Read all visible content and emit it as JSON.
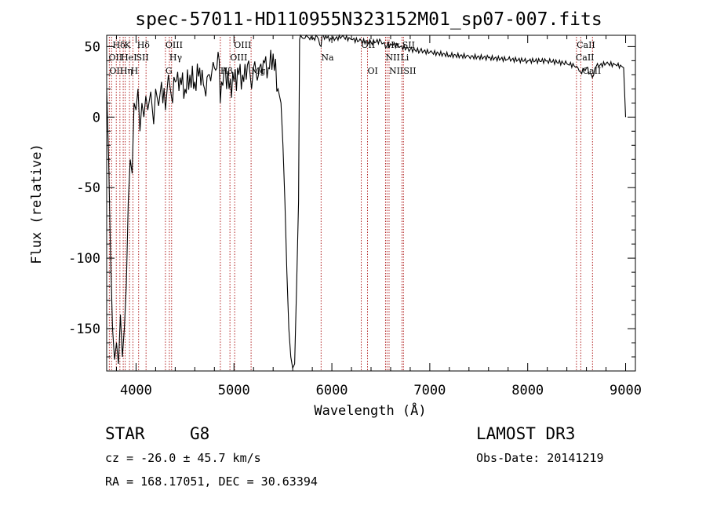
{
  "chart_data": {
    "type": "line",
    "title": "spec-57011-HD110955N323152M01_sp07-007.fits",
    "xlabel": "Wavelength (Å)",
    "ylabel": "Flux (relative)",
    "xlim": [
      3700,
      9100
    ],
    "ylim": [
      -180,
      58
    ],
    "xticks": [
      4000,
      5000,
      6000,
      7000,
      8000,
      9000
    ],
    "yticks": [
      50,
      0,
      -50,
      -100,
      -150
    ],
    "series": [
      {
        "name": "flux",
        "x": [
          3700,
          3720,
          3740,
          3760,
          3780,
          3800,
          3820,
          3840,
          3860,
          3880,
          3900,
          3920,
          3940,
          3960,
          3980,
          4000,
          4020,
          4040,
          4060,
          4080,
          4100,
          4120,
          4150,
          4180,
          4200,
          4230,
          4260,
          4300,
          4330,
          4360,
          4400,
          4450,
          4500,
          4550,
          4600,
          4650,
          4700,
          4750,
          4800,
          4850,
          4860,
          4900,
          4950,
          5000,
          5050,
          5100,
          5150,
          5180,
          5200,
          5250,
          5300,
          5350,
          5400,
          5450,
          5480,
          5500,
          5520,
          5540,
          5560,
          5580,
          5600,
          5620,
          5640,
          5660,
          5670,
          5680,
          5700,
          5750,
          5800,
          5850,
          5890,
          5900,
          5950,
          6000,
          6100,
          6200,
          6300,
          6400,
          6500,
          6560,
          6600,
          6700,
          6800,
          6900,
          7000,
          7200,
          7400,
          7600,
          7800,
          8000,
          8200,
          8400,
          8500,
          8540,
          8600,
          8660,
          8700,
          8800,
          8900,
          8960,
          8980,
          9000
        ],
        "y": [
          20,
          -30,
          -100,
          -150,
          -172,
          -160,
          -175,
          -140,
          -170,
          -150,
          -120,
          -60,
          -30,
          -40,
          10,
          5,
          20,
          -10,
          10,
          0,
          15,
          5,
          18,
          -5,
          20,
          8,
          25,
          5,
          30,
          15,
          25,
          28,
          20,
          30,
          25,
          35,
          20,
          30,
          35,
          40,
          10,
          35,
          20,
          25,
          30,
          25,
          40,
          20,
          35,
          30,
          40,
          35,
          45,
          20,
          10,
          -20,
          -60,
          -110,
          -150,
          -170,
          -178,
          -175,
          -120,
          -60,
          55,
          58,
          56,
          57,
          55,
          57,
          50,
          58,
          56,
          55,
          57,
          55,
          54,
          53,
          54,
          50,
          52,
          50,
          48,
          47,
          46,
          44,
          43,
          42,
          41,
          40,
          40,
          38,
          36,
          32,
          35,
          28,
          36,
          38,
          37,
          36,
          35,
          0
        ]
      }
    ],
    "line_markers": [
      {
        "label": "Hδ",
        "x": 3760,
        "row": 0
      },
      {
        "label": "K",
        "x": 3880,
        "row": 0
      },
      {
        "label": "Hδ",
        "x": 4010,
        "row": 0
      },
      {
        "label": "OIII",
        "x": 4300,
        "row": 0
      },
      {
        "label": "OIII",
        "x": 5000,
        "row": 0
      },
      {
        "label": "OII",
        "x": 6300,
        "row": 0
      },
      {
        "label": "Hα",
        "x": 6560,
        "row": 0
      },
      {
        "label": "SII",
        "x": 6718,
        "row": 0
      },
      {
        "label": "CaII",
        "x": 8500,
        "row": 0
      },
      {
        "label": "OII",
        "x": 3720,
        "row": 1
      },
      {
        "label": "HeI",
        "x": 3845,
        "row": 1
      },
      {
        "label": "SII",
        "x": 4000,
        "row": 1
      },
      {
        "label": "Hγ",
        "x": 4340,
        "row": 1
      },
      {
        "label": "OIII",
        "x": 4960,
        "row": 1
      },
      {
        "label": "Na",
        "x": 5890,
        "row": 1
      },
      {
        "label": "NII",
        "x": 6548,
        "row": 1
      },
      {
        "label": "Li",
        "x": 6700,
        "row": 1
      },
      {
        "label": "CaII",
        "x": 8490,
        "row": 1
      },
      {
        "label": "OII",
        "x": 3727,
        "row": 2
      },
      {
        "label": "Hη",
        "x": 3835,
        "row": 2
      },
      {
        "label": "H",
        "x": 3945,
        "row": 2
      },
      {
        "label": "G",
        "x": 4300,
        "row": 2
      },
      {
        "label": "Hβ",
        "x": 4861,
        "row": 2
      },
      {
        "label": "Mg",
        "x": 5175,
        "row": 2
      },
      {
        "label": "OI",
        "x": 6364,
        "row": 2
      },
      {
        "label": "NII",
        "x": 6584,
        "row": 2
      },
      {
        "label": "SII",
        "x": 6731,
        "row": 2
      },
      {
        "label": "CaII",
        "x": 8560,
        "row": 2
      }
    ],
    "marker_lines_x": [
      3727,
      3750,
      3798,
      3835,
      3869,
      3889,
      3933,
      3968,
      4026,
      4102,
      4300,
      4340,
      4363,
      4861,
      4959,
      5007,
      5175,
      5890,
      6300,
      6364,
      6548,
      6563,
      6584,
      6716,
      6731,
      8498,
      8542,
      8662
    ]
  },
  "info": {
    "object_type": "STAR",
    "subclass": "G8",
    "survey": "LAMOST DR3",
    "cz": "cz = -26.0 ± 45.7 km/s",
    "obs_date": "Obs-Date: 20141219",
    "coords": "RA = 168.17051, DEC =  30.63394"
  },
  "colors": {
    "spectrum": "#000000",
    "marker": "#b22222",
    "axes": "#000000"
  }
}
